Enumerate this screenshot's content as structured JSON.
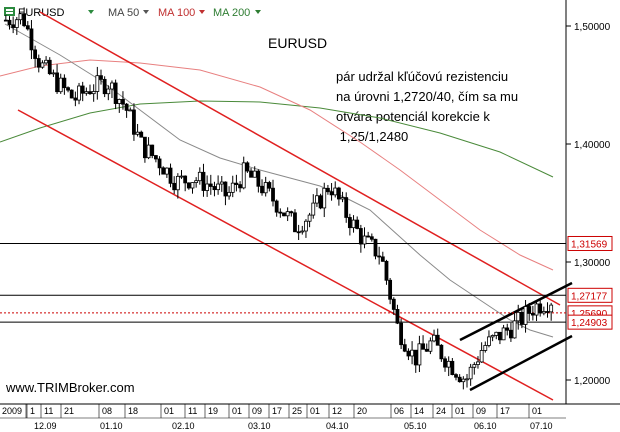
{
  "header": {
    "symbol": "EURUSD",
    "ma50_label": "MA 50",
    "ma100_label": "MA 100",
    "ma200_label": "MA 200"
  },
  "chart_title": "EURUSD",
  "annotation_lines": [
    "pár udržal kľúčovú rezistenciu",
    "na úrovni 1,2720/40, čím sa mu",
    "otvára potenciál korekcie k",
    " 1,25/1,2480"
  ],
  "watermark": "www.TRIMBroker.com",
  "colors": {
    "ma50": "#8a8a8a",
    "ma100": "#e88080",
    "ma200": "#4a8a3a",
    "trendline": "#e02020",
    "channel": "#000000",
    "price_tag_bg": "#ffffff",
    "price_tag_text": "#cc0000"
  },
  "price_tags": [
    "1,31569",
    "1,27177",
    "1,25690",
    "1,24903"
  ],
  "chart_data": {
    "type": "candlestick",
    "title": "EURUSD",
    "y_ticks": [
      "1,50000",
      "1,40000",
      "1,30000",
      "1,20000"
    ],
    "ylim": [
      1.17,
      1.52
    ],
    "horizontal_levels": [
      1.31569,
      1.27177,
      1.24903
    ],
    "current_price": 1.2569,
    "x_day_labels": [
      "2009",
      "1",
      "11",
      "21",
      "08",
      "18",
      "01",
      "11",
      "19",
      "01",
      "09",
      "17",
      "25",
      "01",
      "12",
      "20",
      "06",
      "14",
      "24",
      "01",
      "09",
      "17",
      "01"
    ],
    "x_month_labels": [
      "12.09",
      "01.10",
      "02.10",
      "03.10",
      "04.10",
      "05.10",
      "06.10",
      "07.10"
    ],
    "close_path": [
      [
        1.505,
        1.496
      ],
      [
        1.508,
        1.478
      ],
      [
        1.468,
        1.445
      ],
      [
        1.452,
        1.441
      ],
      [
        1.438,
        1.442
      ],
      [
        1.448,
        1.455
      ],
      [
        1.452,
        1.441
      ],
      [
        1.432,
        1.408
      ],
      [
        1.398,
        1.388
      ],
      [
        1.385,
        1.372
      ],
      [
        1.368,
        1.362
      ],
      [
        1.371,
        1.375
      ],
      [
        1.365,
        1.355
      ],
      [
        1.356,
        1.372
      ],
      [
        1.376,
        1.368
      ],
      [
        1.364,
        1.352
      ],
      [
        1.348,
        1.336
      ],
      [
        1.33,
        1.32
      ],
      [
        1.342,
        1.362
      ],
      [
        1.366,
        1.352
      ],
      [
        1.34,
        1.328
      ],
      [
        1.318,
        1.318
      ],
      [
        1.306,
        1.238
      ],
      [
        1.244,
        1.228
      ],
      [
        1.218,
        1.238
      ],
      [
        1.232,
        1.218
      ],
      [
        1.215,
        1.192
      ],
      [
        1.2,
        1.226
      ],
      [
        1.228,
        1.221
      ],
      [
        1.238,
        1.23
      ],
      [
        1.248,
        1.258
      ],
      [
        1.262,
        1.271
      ],
      [
        1.268,
        1.257
      ]
    ]
  }
}
